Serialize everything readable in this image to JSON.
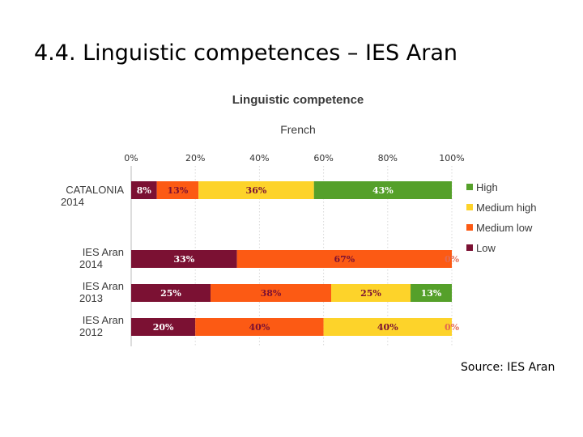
{
  "slide": {
    "title": "4.4. Linguistic competences – IES Aran",
    "source": "Source: IES Aran"
  },
  "chart_data": {
    "type": "bar",
    "orientation": "horizontal-stacked-100",
    "title": "Linguistic competence",
    "subtitle": "French",
    "x_ticks": [
      "0%",
      "20%",
      "40%",
      "60%",
      "80%",
      "100%"
    ],
    "xlim": [
      0,
      100
    ],
    "legend_position": "right",
    "categories": [
      {
        "line1": "CATALONIA",
        "line2": "2014"
      },
      {
        "line1": "IES Aran",
        "line2": "2014"
      },
      {
        "line1": "IES Aran",
        "line2": "2013"
      },
      {
        "line1": "IES Aran",
        "line2": "2012"
      }
    ],
    "series": [
      {
        "name": "Low",
        "color": "#7b1133",
        "label_color": "#ffffff",
        "values": [
          8,
          33,
          25,
          20
        ],
        "labels": [
          "8%",
          "33%",
          "25%",
          "20%"
        ]
      },
      {
        "name": "Medium low",
        "color": "#fc5a14",
        "label_color": "#7b1133",
        "values": [
          13,
          67,
          38,
          40
        ],
        "labels": [
          "13%",
          "67%",
          "38%",
          "40%"
        ]
      },
      {
        "name": "Medium high",
        "color": "#fdd32a",
        "label_color": "#7b1133",
        "values": [
          36,
          0,
          25,
          40
        ],
        "labels": [
          "36%",
          "0%",
          "25%",
          "40%"
        ]
      },
      {
        "name": "High",
        "color": "#55a02a",
        "label_color": "#ffffff",
        "values": [
          43,
          0,
          13,
          0
        ],
        "labels": [
          "43%",
          "",
          "13%",
          "0%"
        ]
      }
    ],
    "legend_order": [
      "High",
      "Medium high",
      "Medium low",
      "Low"
    ]
  }
}
